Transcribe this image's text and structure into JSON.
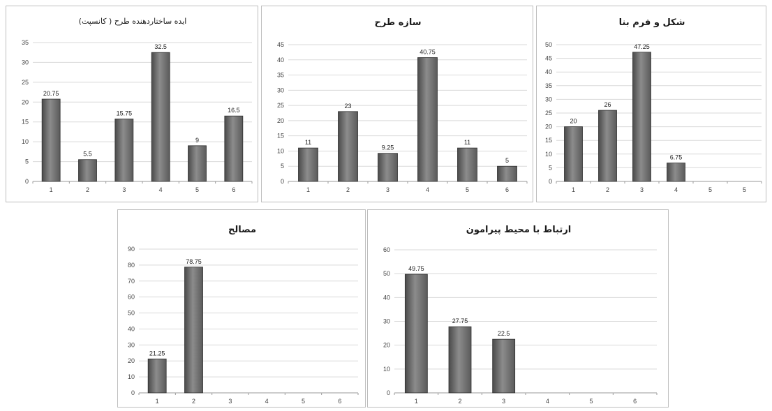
{
  "chart_data": [
    {
      "type": "bar",
      "title": "ایده ساختاردهنده طرح ( کانسپت)",
      "categories": [
        "1",
        "2",
        "3",
        "4",
        "5",
        "6"
      ],
      "values": [
        20.75,
        5.5,
        15.75,
        32.5,
        9,
        16.5
      ],
      "value_labels": [
        "20.75",
        "5.5",
        "15.75",
        "32.5",
        "9",
        "16.5"
      ],
      "ylim": [
        0,
        35
      ],
      "yticks": [
        "0",
        "5",
        "10",
        "15",
        "20",
        "25",
        "30",
        "35"
      ],
      "grid": true
    },
    {
      "type": "bar",
      "title": "سازه طرح",
      "categories": [
        "1",
        "2",
        "3",
        "4",
        "5",
        "6"
      ],
      "values": [
        11,
        23,
        9.25,
        40.75,
        11,
        5
      ],
      "value_labels": [
        "11",
        "23",
        "9.25",
        "40.75",
        "11",
        "5"
      ],
      "ylim": [
        0,
        45
      ],
      "yticks": [
        "0",
        "5",
        "10",
        "15",
        "20",
        "25",
        "30",
        "35",
        "40",
        "45"
      ],
      "grid": true
    },
    {
      "type": "bar",
      "title": "شکل و فرم بنا",
      "categories": [
        "1",
        "2",
        "3",
        "4",
        "5",
        "5"
      ],
      "values": [
        20,
        26,
        47.25,
        6.75,
        null,
        null
      ],
      "value_labels": [
        "20",
        "26",
        "47.25",
        "6.75",
        "",
        ""
      ],
      "ylim": [
        0,
        50
      ],
      "yticks": [
        "0",
        "5",
        "10",
        "15",
        "20",
        "25",
        "30",
        "35",
        "40",
        "45",
        "50"
      ],
      "grid": true
    },
    {
      "type": "bar",
      "title": "مصالح",
      "categories": [
        "1",
        "2",
        "3",
        "4",
        "5",
        "6"
      ],
      "values": [
        21.25,
        78.75,
        null,
        null,
        null,
        null
      ],
      "value_labels": [
        "21.25",
        "78.75",
        "",
        "",
        "",
        ""
      ],
      "ylim": [
        0,
        90
      ],
      "yticks": [
        "0",
        "10",
        "20",
        "30",
        "40",
        "50",
        "60",
        "70",
        "80",
        "90"
      ],
      "grid": true
    },
    {
      "type": "bar",
      "title": "ارتباط با محیط پیرامون",
      "categories": [
        "1",
        "2",
        "3",
        "4",
        "5",
        "6"
      ],
      "values": [
        49.75,
        27.75,
        22.5,
        null,
        null,
        null
      ],
      "value_labels": [
        "49.75",
        "27.75",
        "22.5",
        "",
        "",
        ""
      ],
      "ylim": [
        0,
        60
      ],
      "yticks": [
        "0",
        "10",
        "20",
        "30",
        "40",
        "50",
        "60"
      ],
      "grid": true
    }
  ]
}
